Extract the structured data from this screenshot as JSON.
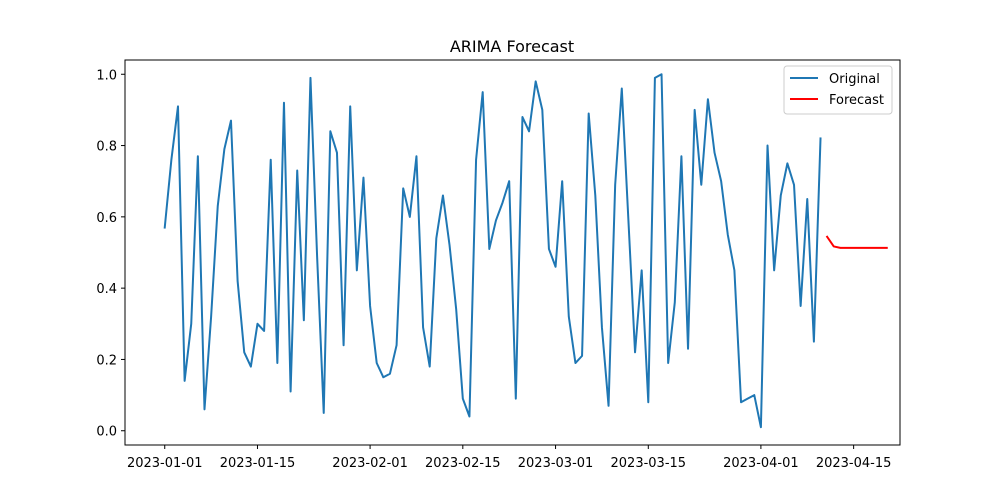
{
  "chart_data": {
    "type": "line",
    "title": "ARIMA Forecast",
    "xlabel": "",
    "ylabel": "",
    "xlim": [
      "2022-12-26",
      "2023-04-22"
    ],
    "ylim": [
      -0.04,
      1.04
    ],
    "x_ticks": [
      "2023-01-01",
      "2023-01-15",
      "2023-02-01",
      "2023-02-15",
      "2023-03-01",
      "2023-03-15",
      "2023-04-01",
      "2023-04-15"
    ],
    "y_ticks": [
      "0.0",
      "0.2",
      "0.4",
      "0.6",
      "0.8",
      "1.0"
    ],
    "grid": false,
    "legend": {
      "placement": "top-right",
      "entries": [
        "Original",
        "Forecast"
      ]
    },
    "series": [
      {
        "name": "Original",
        "color": "#1f77b4",
        "start": "2023-01-01",
        "values": [
          0.57,
          0.76,
          0.91,
          0.14,
          0.3,
          0.77,
          0.06,
          0.32,
          0.63,
          0.79,
          0.87,
          0.42,
          0.22,
          0.18,
          0.3,
          0.28,
          0.76,
          0.19,
          0.92,
          0.11,
          0.73,
          0.31,
          0.99,
          0.49,
          0.05,
          0.84,
          0.78,
          0.24,
          0.91,
          0.45,
          0.71,
          0.35,
          0.19,
          0.15,
          0.16,
          0.24,
          0.68,
          0.6,
          0.77,
          0.29,
          0.18,
          0.54,
          0.66,
          0.52,
          0.34,
          0.09,
          0.04,
          0.76,
          0.95,
          0.51,
          0.59,
          0.64,
          0.7,
          0.09,
          0.88,
          0.84,
          0.98,
          0.9,
          0.51,
          0.46,
          0.7,
          0.32,
          0.19,
          0.21,
          0.89,
          0.66,
          0.29,
          0.07,
          0.69,
          0.96,
          0.59,
          0.22,
          0.45,
          0.08,
          0.99,
          1.0,
          0.19,
          0.36,
          0.77,
          0.23,
          0.9,
          0.69,
          0.93,
          0.78,
          0.7,
          0.55,
          0.45,
          0.08,
          0.09,
          0.1,
          0.01,
          0.8,
          0.45,
          0.66,
          0.75,
          0.69,
          0.35,
          0.65,
          0.25,
          0.82
        ]
      },
      {
        "name": "Forecast",
        "color": "#ff0000",
        "start": "2023-04-11",
        "values": [
          0.544,
          0.517,
          0.513,
          0.513,
          0.513,
          0.513,
          0.513,
          0.513,
          0.513,
          0.513
        ]
      }
    ]
  }
}
